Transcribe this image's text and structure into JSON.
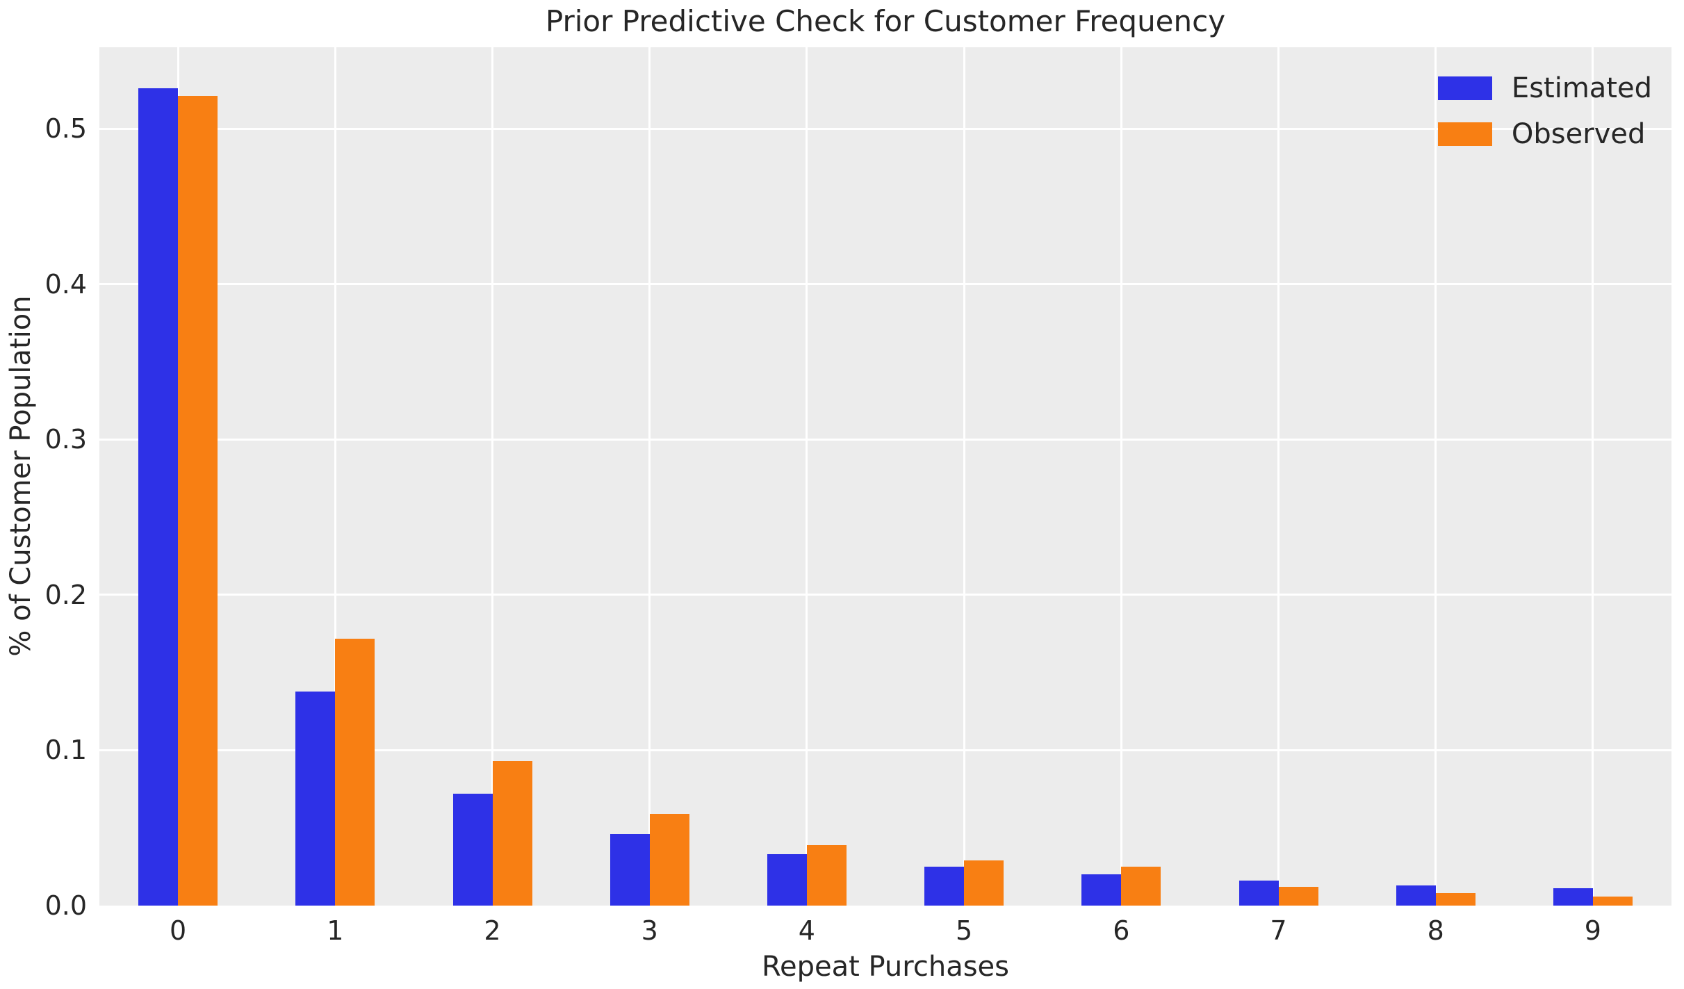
{
  "title": "Prior Predictive Check for Customer Frequency",
  "colors": {
    "estimated": "#2e31e7",
    "observed": "#f87f13",
    "plot_background": "#ececec",
    "grid": "#ffffff",
    "text": "#262626"
  },
  "legend": {
    "items": [
      {
        "label": "Estimated",
        "color": "#2e31e7"
      },
      {
        "label": "Observed",
        "color": "#f87f13"
      }
    ],
    "position": "upper right"
  },
  "chart_data": {
    "type": "bar",
    "title": "Prior Predictive Check for Customer Frequency",
    "xlabel": "Repeat Purchases",
    "ylabel": "% of Customer Population",
    "categories": [
      "0",
      "1",
      "2",
      "3",
      "4",
      "5",
      "6",
      "7",
      "8",
      "9"
    ],
    "series": [
      {
        "name": "Estimated",
        "color": "#2e31e7",
        "values": [
          0.526,
          0.138,
          0.072,
          0.046,
          0.033,
          0.025,
          0.02,
          0.016,
          0.013,
          0.011
        ]
      },
      {
        "name": "Observed",
        "color": "#f87f13",
        "values": [
          0.521,
          0.172,
          0.093,
          0.059,
          0.039,
          0.029,
          0.025,
          0.012,
          0.008,
          0.006
        ]
      }
    ],
    "ylim": [
      0,
      0.5525
    ],
    "yticks": [
      0.0,
      0.1,
      0.2,
      0.3,
      0.4,
      0.5
    ],
    "ytick_labels": [
      "0.0",
      "0.1",
      "0.2",
      "0.3",
      "0.4",
      "0.5"
    ],
    "grid": true,
    "grid_axis_below": true,
    "legend_position": "upper right"
  }
}
